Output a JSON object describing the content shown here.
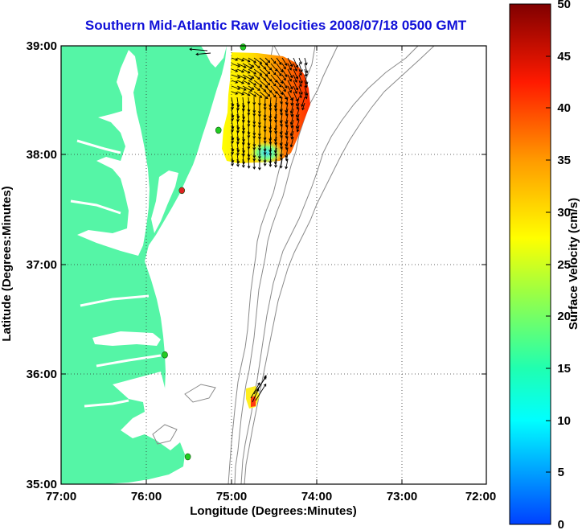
{
  "title": "Southern Mid-Atlantic Raw Velocities 2008/07/18 0500 GMT",
  "axes": {
    "xlabel": "Longitude (Degrees:Minutes)",
    "ylabel": "Latitude (Degrees:Minutes)",
    "x_ticks": [
      "77:00",
      "76:00",
      "75:00",
      "74:00",
      "73:00",
      "72:00"
    ],
    "y_ticks": [
      "39:00",
      "38:00",
      "37:00",
      "36:00",
      "35:00"
    ]
  },
  "colorbar": {
    "label": "Surface Velocity (cm/s)",
    "ticks": [
      "0",
      "5",
      "10",
      "15",
      "20",
      "25",
      "30",
      "35",
      "40",
      "45",
      "50"
    ],
    "min": 0,
    "max": 50
  },
  "colors": {
    "land": "#55f5a6",
    "water": "#ffffff",
    "title": "#1010d8",
    "bathymetry": "#8a8a8a",
    "station": "#22cc22",
    "station_inactive": "#dd2222"
  },
  "map_extent": {
    "lon_min": -77.0,
    "lon_max": -72.0,
    "lat_min": 35.0,
    "lat_max": 39.0
  },
  "grid": "dotted",
  "stations": [
    {
      "lon": -74.86,
      "lat": 38.99,
      "status": "active"
    },
    {
      "lon": -75.15,
      "lat": 38.23,
      "status": "active"
    },
    {
      "lon": -75.58,
      "lat": 37.68,
      "status": "inactive"
    },
    {
      "lon": -75.78,
      "lat": 36.18,
      "status": "active"
    },
    {
      "lon": -75.51,
      "lat": 35.25,
      "status": "active"
    }
  ]
}
